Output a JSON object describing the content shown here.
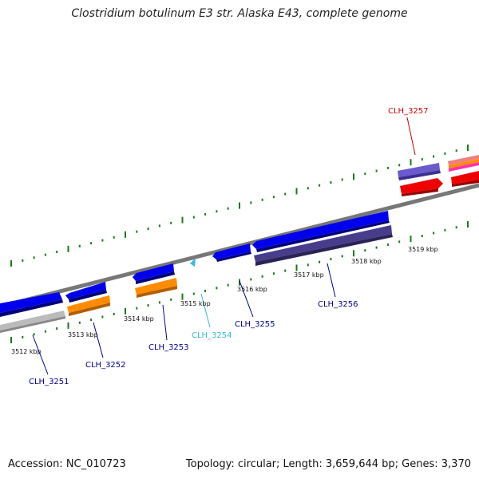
{
  "title": "Clostridium botulinum E3 str. Alaska E43, complete genome",
  "footer": {
    "accession": "Accession: NC_010723",
    "summary": "Topology: circular; Length: 3,659,644 bp; Genes: 3,370"
  },
  "colors": {
    "backbone": "#777777",
    "tick": "#1a7a1a",
    "kbp_label": "#111111",
    "gene_label_default": "#00008b",
    "gene_label_highlight_red": "#cc0000",
    "gene_label_highlight_cyan": "#33bbdd",
    "gene_blue": "#0000ee",
    "gene_orange": "#ff8c00",
    "gene_grey": "#bbbbbb",
    "gene_purple": "#6a5acd",
    "gene_navy": "#483d8b",
    "gene_red": "#ee0000",
    "gene_pink": "#ff66cc",
    "gene_cyan": "#33bbdd"
  },
  "kbp_ticks": [
    "3512 kbp",
    "3513 kbp",
    "3514 kbp",
    "3515 kbp",
    "3516 kbp",
    "3517 kbp",
    "3518 kbp",
    "3519 kbp"
  ],
  "genes": [
    {
      "label": "CLH_3251",
      "color_key": "gene_label_default"
    },
    {
      "label": "CLH_3252",
      "color_key": "gene_label_default"
    },
    {
      "label": "CLH_3253",
      "color_key": "gene_label_default"
    },
    {
      "label": "CLH_3254",
      "color_key": "gene_label_highlight_cyan"
    },
    {
      "label": "CLH_3255",
      "color_key": "gene_label_default"
    },
    {
      "label": "CLH_3256",
      "color_key": "gene_label_default"
    },
    {
      "label": "CLH_3257",
      "color_key": "gene_label_highlight_red"
    }
  ]
}
